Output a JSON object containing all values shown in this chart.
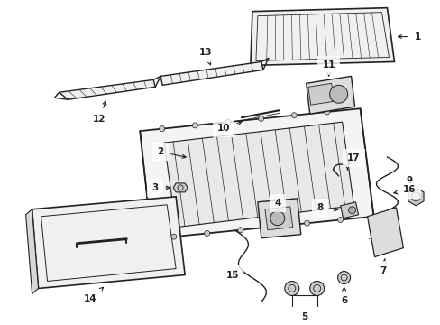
{
  "background_color": "#ffffff",
  "line_color": "#222222",
  "fig_width": 4.89,
  "fig_height": 3.6,
  "dpi": 100,
  "label_fontsize": 7.5
}
